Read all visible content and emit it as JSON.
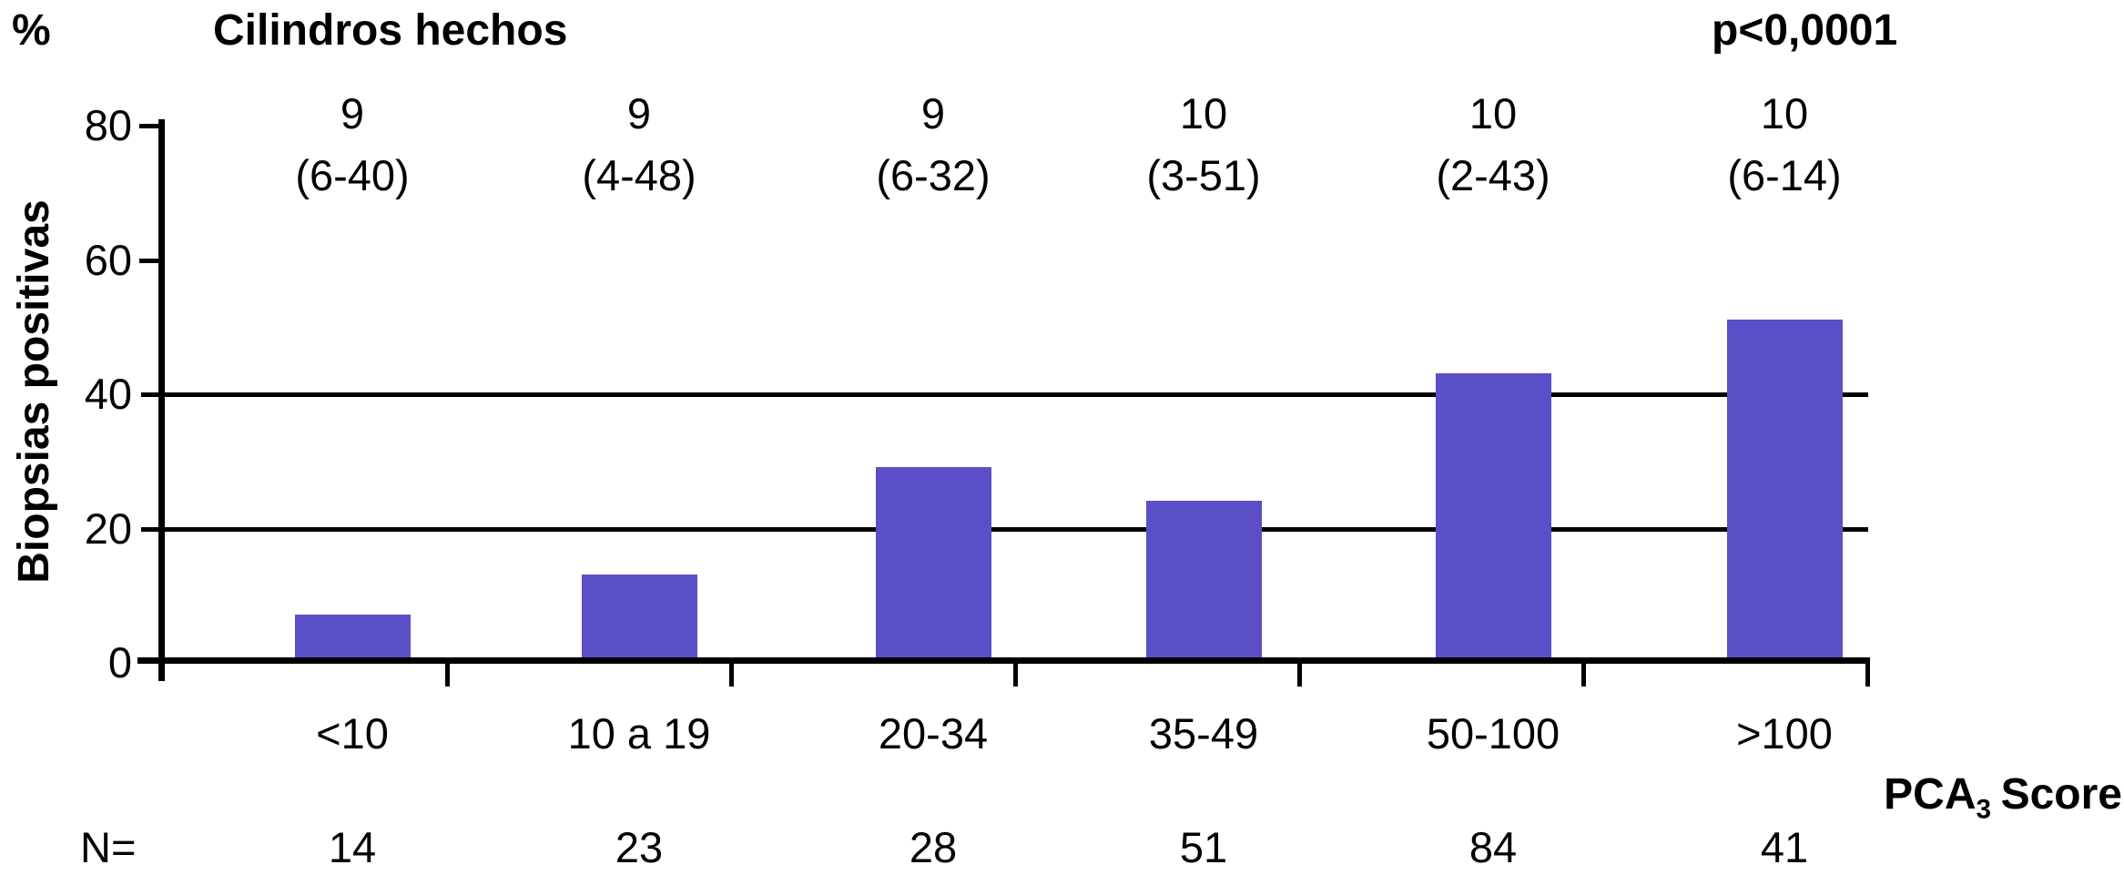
{
  "chart_data": {
    "type": "bar",
    "title": "Cilindros hechos",
    "unit_label": "%",
    "p_value": "p<0,0001",
    "ylabel": "Biopsias positivas",
    "xlabel": {
      "main": "PCA",
      "sub": "3",
      "rest": "Score"
    },
    "categories": [
      "<10",
      "10 a 19",
      "20-34",
      "35-49",
      "50-100",
      ">100"
    ],
    "values": [
      7,
      13,
      29,
      24,
      43,
      51
    ],
    "cores_done_median": [
      "9",
      "9",
      "9",
      "10",
      "10",
      "10"
    ],
    "cores_done_range": [
      "(6-40)",
      "(4-48)",
      "(6-32)",
      "(3-51)",
      "(2-43)",
      "(6-14)"
    ],
    "n_label": "N=",
    "n_values": [
      14,
      23,
      28,
      51,
      84,
      41
    ],
    "yticks": [
      0,
      20,
      40,
      60,
      80
    ],
    "ylim": [
      0,
      80
    ],
    "gridlines_at": [
      20,
      40
    ],
    "grid": "horizontal",
    "legend_position": "none",
    "bar_color": "#5A4FC6",
    "axis_color": "#000000"
  }
}
